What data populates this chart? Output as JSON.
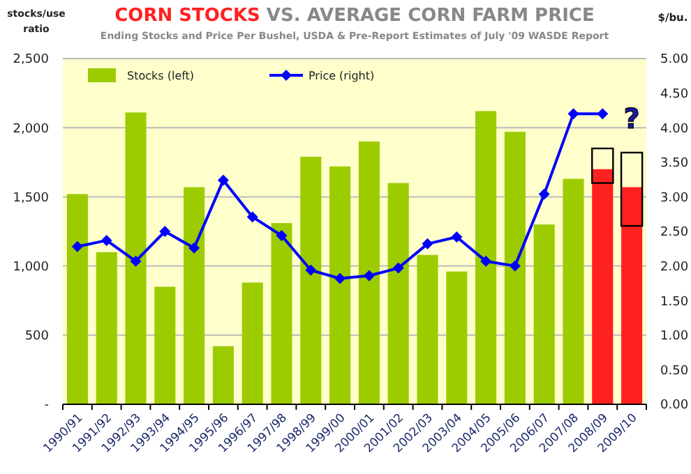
{
  "chart_data": {
    "type": "bar",
    "title": "CORN STOCKS VS. AVERAGE CORN FARM PRICE",
    "subtitle": "Ending Stocks and Price Per Bushel, USDA & Pre-Report Estimates of July '09 WASDE Report",
    "ylabel": "stocks/use ratio",
    "y2label": "$/bu.",
    "categories": [
      "1990/91",
      "1991/92",
      "1992/93",
      "1993/94",
      "1994/95",
      "1995/96",
      "1996/97",
      "1997/98",
      "1998/99",
      "1999/00",
      "2000/01",
      "2001/02",
      "2002/03",
      "2003/04",
      "2004/05",
      "2005/06",
      "2006/07",
      "2007/08",
      "2008/09",
      "2009/10"
    ],
    "series": [
      {
        "name": "Stocks (left)",
        "color": "#9ccc00",
        "colors": [
          "#9ccc00",
          "#9ccc00",
          "#9ccc00",
          "#9ccc00",
          "#9ccc00",
          "#9ccc00",
          "#9ccc00",
          "#9ccc00",
          "#9ccc00",
          "#9ccc00",
          "#9ccc00",
          "#9ccc00",
          "#9ccc00",
          "#9ccc00",
          "#9ccc00",
          "#9ccc00",
          "#9ccc00",
          "#9ccc00",
          "#ff2020",
          "#ff2020"
        ],
        "values": [
          1520,
          1100,
          2110,
          850,
          1570,
          420,
          880,
          1310,
          1790,
          1720,
          1900,
          1600,
          1080,
          960,
          2120,
          1970,
          1300,
          1630,
          1700,
          1570
        ]
      },
      {
        "color": "#000000",
        "base": [
          null,
          null,
          null,
          null,
          null,
          null,
          null,
          null,
          null,
          null,
          null,
          null,
          null,
          null,
          null,
          null,
          null,
          null,
          1600,
          1290
        ],
        "values": [
          null,
          null,
          null,
          null,
          null,
          null,
          null,
          null,
          null,
          null,
          null,
          null,
          null,
          null,
          null,
          null,
          null,
          null,
          250,
          530
        ]
      },
      {
        "name": "Price (right)",
        "type": "line",
        "axis": "y2",
        "color": "#0000ff",
        "marker": "diamond",
        "values": [
          2.28,
          2.37,
          2.07,
          2.5,
          2.26,
          3.24,
          2.71,
          2.44,
          1.94,
          1.82,
          1.86,
          1.97,
          2.32,
          2.42,
          2.07,
          2.0,
          3.04,
          4.2,
          4.2,
          null
        ]
      }
    ],
    "ylim": [
      0,
      2500
    ],
    "yticks": [
      {
        "value": 0,
        "label": "-"
      },
      {
        "value": 500,
        "label": "500"
      },
      {
        "value": 1000,
        "label": "1,000"
      },
      {
        "value": 1500,
        "label": "1,500"
      },
      {
        "value": 2000,
        "label": "2,000"
      },
      {
        "value": 2500,
        "label": "2,500"
      }
    ],
    "y2lim": [
      0,
      5
    ],
    "y2ticks": [
      {
        "value": 0,
        "label": "0.00"
      },
      {
        "value": 0.5,
        "label": "0.50"
      },
      {
        "value": 1,
        "label": "1.00"
      },
      {
        "value": 1.5,
        "label": "1.50"
      },
      {
        "value": 2,
        "label": "2.00"
      },
      {
        "value": 2.5,
        "label": "2.50"
      },
      {
        "value": 3,
        "label": "3.00"
      },
      {
        "value": 3.5,
        "label": "3.50"
      },
      {
        "value": 4,
        "label": "4.00"
      },
      {
        "value": 4.5,
        "label": "4.50"
      },
      {
        "value": 5,
        "label": "5.00"
      }
    ],
    "annotations": [
      "?"
    ],
    "grid": "y",
    "legend": "top left"
  }
}
